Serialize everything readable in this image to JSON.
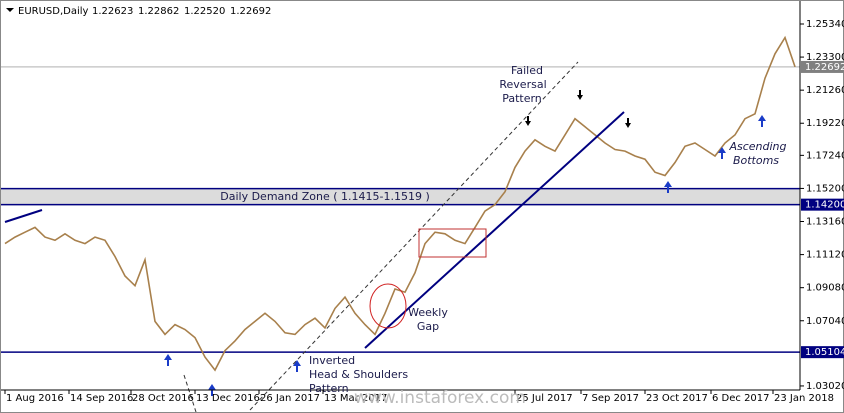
{
  "header": {
    "symbol": "EURUSD,Daily",
    "open": "1.22623",
    "high": "1.22862",
    "low": "1.22520",
    "close": "1.22692"
  },
  "chart_data": {
    "type": "line",
    "series": [
      {
        "name": "EURUSD",
        "color": "#a8804c",
        "x": [
          1,
          6,
          11,
          16,
          21,
          26,
          31,
          36,
          41,
          46,
          51,
          56,
          61,
          66,
          71,
          76,
          81,
          86,
          91,
          96,
          101,
          106,
          111,
          116,
          121,
          126,
          131,
          136,
          141,
          146,
          151,
          156,
          161,
          166,
          171,
          176,
          181,
          186,
          191,
          196,
          201,
          206,
          211,
          216,
          221,
          226,
          231,
          236,
          241,
          246,
          251,
          256,
          261,
          266,
          271,
          276,
          281,
          286,
          291,
          296,
          301,
          306,
          311,
          316,
          321,
          326,
          331,
          336,
          341,
          346,
          351,
          356,
          361,
          366,
          371,
          376,
          381,
          386,
          391,
          396
        ],
        "values": [
          1.118,
          1.122,
          1.125,
          1.128,
          1.122,
          1.12,
          1.124,
          1.12,
          1.118,
          1.122,
          1.12,
          1.11,
          1.098,
          1.092,
          1.108,
          1.07,
          1.062,
          1.068,
          1.065,
          1.06,
          1.048,
          1.04,
          1.052,
          1.058,
          1.065,
          1.07,
          1.075,
          1.07,
          1.063,
          1.062,
          1.068,
          1.072,
          1.066,
          1.078,
          1.085,
          1.075,
          1.068,
          1.062,
          1.075,
          1.09,
          1.088,
          1.1,
          1.118,
          1.125,
          1.124,
          1.12,
          1.118,
          1.128,
          1.138,
          1.142,
          1.15,
          1.165,
          1.175,
          1.182,
          1.178,
          1.175,
          1.185,
          1.195,
          1.19,
          1.185,
          1.18,
          1.176,
          1.175,
          1.172,
          1.17,
          1.162,
          1.16,
          1.168,
          1.178,
          1.18,
          1.176,
          1.172,
          1.18,
          1.185,
          1.195,
          1.198,
          1.22,
          1.235,
          1.245,
          1.227
        ]
      }
    ],
    "xlim": [
      -1.5,
      398.5
    ],
    "xticks": [
      {
        "value": 1,
        "label": "1 Aug 2016"
      },
      {
        "value": 33,
        "label": "14 Sep 2016"
      },
      {
        "value": 64,
        "label": "28 Oct 2016"
      },
      {
        "value": 96,
        "label": "13 Dec 2016"
      },
      {
        "value": 128,
        "label": "26 Jan 2017"
      },
      {
        "value": 160,
        "label": "13 Mar 2017"
      },
      {
        "value": 256,
        "label": "25 Jul 2017"
      },
      {
        "value": 289,
        "label": "7 Sep 2017"
      },
      {
        "value": 321,
        "label": "23 Oct 2017"
      },
      {
        "value": 354,
        "label": "6 Dec 2017"
      },
      {
        "value": 385,
        "label": "23 Jan 2018"
      }
    ],
    "ylim": [
      1.0277,
      1.2682
    ],
    "yticks": [
      {
        "value": 1.2534,
        "label": "1.25340"
      },
      {
        "value": 1.233,
        "label": "1.23300"
      },
      {
        "value": 1.2126,
        "label": "1.21260"
      },
      {
        "value": 1.1922,
        "label": "1.19220"
      },
      {
        "value": 1.1724,
        "label": "1.17240"
      },
      {
        "value": 1.152,
        "label": "1.15200"
      },
      {
        "value": 1.1316,
        "label": "1.13160"
      },
      {
        "value": 1.1112,
        "label": "1.11120"
      },
      {
        "value": 1.0908,
        "label": "1.09080"
      },
      {
        "value": 1.0704,
        "label": "1.07040"
      },
      {
        "value": 1.0302,
        "label": "1.03020"
      }
    ],
    "levels": [
      {
        "value": 1.22692,
        "label": "1.22692",
        "color": "#808080"
      },
      {
        "value": 1.142,
        "label": "1.14200",
        "color": "#000080"
      },
      {
        "value": 1.05104,
        "label": "1.05104",
        "color": "#000080"
      }
    ],
    "demand_zone": [
      1.1415,
      1.1519
    ],
    "annotations": {
      "demand_zone": "Daily Demand Zone ( 1.1415-1.1519 )",
      "failed_reversal": [
        "Failed",
        "Reversal",
        "Pattern"
      ],
      "weekly_gap": [
        "Weekly",
        "Gap"
      ],
      "head_shoulders": [
        "Inverted",
        "Head & Shoulders",
        "Pattern"
      ],
      "ascending": [
        "Ascending",
        "Bottoms"
      ]
    },
    "watermark": "www.instaforex.com"
  }
}
